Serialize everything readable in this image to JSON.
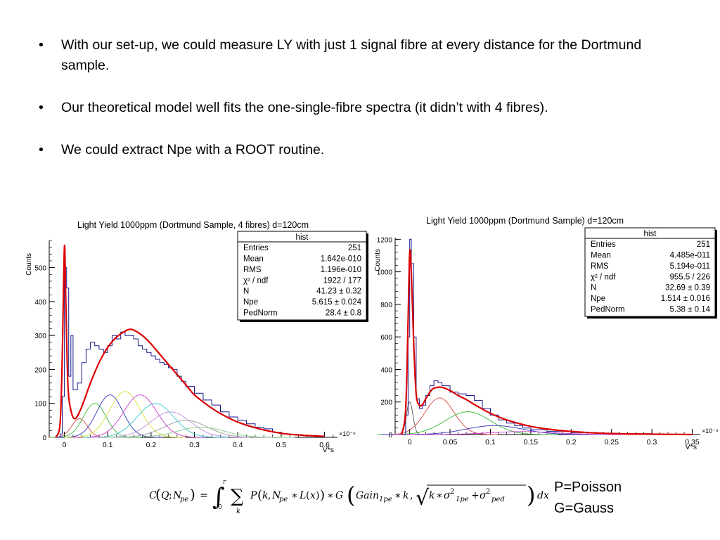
{
  "bullets": [
    "With our set-up, we  could measure LY with just 1 signal fibre at every distance for the Dortmund sample.",
    "Our theoretical model well fits the one-single-fibre spectra (it didn’t with 4 fibres).",
    "We could extract Npe with a ROOT routine."
  ],
  "bullet_symbol": "•",
  "formula_legend": {
    "poisson": "P=Poisson",
    "gauss": "G=Gauss"
  },
  "formula": {
    "lhs_c": "C",
    "lhs_q": "Q",
    "lhs_npe": "N",
    "sub_pe": "pe",
    "integral": "∫",
    "lower": "0",
    "upper": "r",
    "sum": "∑",
    "sum_index": "k",
    "p": "P",
    "k": "k",
    "l": "L",
    "x": "x",
    "g": "G",
    "gain": "Gain",
    "sub_1pe": "1pe",
    "sigma": "σ",
    "two": "2",
    "sub_ped": "ped",
    "dx": "dx",
    "eq": "=",
    "star": "∗",
    "plus": "+",
    "comma": ",",
    "semicolon": ";",
    "lparen": "(",
    "rparen": ")",
    "sqrt": "√"
  },
  "chart_data": [
    {
      "type": "line",
      "title": "Light Yield 1000ppm (Dortmund Sample, 4 fibres) d=120cm",
      "xlabel": "V*s",
      "ylabel": "Counts",
      "x_exponent": "×10⁻⁹",
      "xlim": [
        -0.035,
        0.63
      ],
      "ylim": [
        0,
        580
      ],
      "xticks": [
        0,
        0.1,
        0.2,
        0.3,
        0.4,
        0.5,
        0.6
      ],
      "xtick_labels": [
        "0",
        "0.1",
        "0.2",
        "0.3",
        "0.4",
        "0.5",
        "0.6"
      ],
      "yticks": [
        0,
        100,
        200,
        300,
        400,
        500
      ],
      "grid": false,
      "stats_box": {
        "title": "hist",
        "rows": [
          [
            "Entries",
            "251"
          ],
          [
            "Mean",
            "1.642e-010"
          ],
          [
            "RMS",
            "1.196e-010"
          ],
          [
            "χ² / ndf",
            "1922 / 177"
          ],
          [
            "N",
            "41.23 ± 0.32"
          ],
          [
            "Npe",
            "5.615 ± 0.024"
          ],
          [
            "PedNorm",
            "28.4 ± 0.8"
          ]
        ]
      },
      "histogram": {
        "color": "#1a1a8c",
        "x": [
          -0.02,
          -0.01,
          -0.005,
          0,
          0.005,
          0.01,
          0.015,
          0.02,
          0.03,
          0.04,
          0.05,
          0.06,
          0.07,
          0.08,
          0.09,
          0.1,
          0.11,
          0.12,
          0.13,
          0.14,
          0.15,
          0.16,
          0.17,
          0.18,
          0.19,
          0.2,
          0.21,
          0.22,
          0.23,
          0.24,
          0.25,
          0.26,
          0.27,
          0.28,
          0.3,
          0.32,
          0.34,
          0.36,
          0.38,
          0.4,
          0.42,
          0.44,
          0.46,
          0.48,
          0.5,
          0.52,
          0.55,
          0.58,
          0.6
        ],
        "y": [
          0,
          10,
          120,
          500,
          440,
          180,
          300,
          140,
          160,
          220,
          260,
          280,
          270,
          260,
          250,
          270,
          300,
          290,
          310,
          300,
          300,
          290,
          270,
          260,
          250,
          240,
          230,
          220,
          215,
          205,
          200,
          180,
          165,
          150,
          130,
          110,
          95,
          75,
          60,
          50,
          40,
          30,
          25,
          15,
          10,
          8,
          5,
          3,
          0
        ]
      },
      "series": [
        {
          "color": "#dd0000",
          "x": [
            -0.02,
            -0.01,
            -0.005,
            0,
            0.003,
            0.008,
            0.015,
            0.025,
            0.04,
            0.06,
            0.08,
            0.1,
            0.12,
            0.14,
            0.15,
            0.16,
            0.18,
            0.2,
            0.22,
            0.25,
            0.28,
            0.3,
            0.33,
            0.36,
            0.4,
            0.45,
            0.5,
            0.55,
            0.6
          ],
          "y": [
            0,
            40,
            230,
            560,
            420,
            160,
            80,
            55,
            90,
            160,
            220,
            265,
            295,
            313,
            318,
            316,
            300,
            275,
            245,
            200,
            155,
            125,
            95,
            70,
            45,
            25,
            12,
            6,
            3
          ]
        }
      ],
      "components": [
        {
          "color": "#dd4444",
          "mu": 0.035,
          "sigma": 0.018,
          "amp": 55
        },
        {
          "color": "#33bb33",
          "mu": 0.07,
          "sigma": 0.026,
          "amp": 100
        },
        {
          "color": "#3333bb",
          "mu": 0.105,
          "sigma": 0.03,
          "amp": 125
        },
        {
          "color": "#dddd33",
          "mu": 0.14,
          "sigma": 0.035,
          "amp": 135
        },
        {
          "color": "#cc33cc",
          "mu": 0.175,
          "sigma": 0.038,
          "amp": 125
        },
        {
          "color": "#33cccc",
          "mu": 0.21,
          "sigma": 0.042,
          "amp": 100
        },
        {
          "color": "#bb88dd",
          "mu": 0.245,
          "sigma": 0.046,
          "amp": 75
        },
        {
          "color": "#999999",
          "mu": 0.28,
          "sigma": 0.05,
          "amp": 50
        },
        {
          "color": "#88cc88",
          "mu": 0.315,
          "sigma": 0.054,
          "amp": 30
        }
      ]
    },
    {
      "type": "line",
      "title": "Light Yield 1000ppm (Dortmund Sample) d=120cm",
      "xlabel": "V*s",
      "ylabel": "Counts",
      "x_exponent": "×10⁻⁹",
      "xlim": [
        -0.018,
        0.36
      ],
      "ylim": [
        0,
        1210
      ],
      "xticks": [
        0,
        0.05,
        0.1,
        0.15,
        0.2,
        0.25,
        0.3,
        0.35
      ],
      "xtick_labels": [
        "0",
        "0.05",
        "0.1",
        "0.15",
        "0.2",
        "0.25",
        "0.3",
        "0.35"
      ],
      "yticks": [
        0,
        200,
        400,
        600,
        800,
        1000,
        1200
      ],
      "grid": false,
      "stats_box": {
        "title": "hist",
        "rows": [
          [
            "Entries",
            "251"
          ],
          [
            "Mean",
            "4.485e-011"
          ],
          [
            "RMS",
            "5.194e-011"
          ],
          [
            "χ² / ndf",
            "955.5 / 226"
          ],
          [
            "N",
            "32.69 ± 0.39"
          ],
          [
            "Npe",
            "1.514 ± 0.016"
          ],
          [
            "PedNorm",
            "5.38 ± 0.14"
          ]
        ]
      },
      "histogram": {
        "color": "#1a1a8c",
        "x": [
          -0.01,
          -0.005,
          -0.002,
          0,
          0.002,
          0.005,
          0.008,
          0.012,
          0.016,
          0.02,
          0.025,
          0.03,
          0.035,
          0.04,
          0.05,
          0.06,
          0.07,
          0.08,
          0.09,
          0.1,
          0.11,
          0.12,
          0.13,
          0.14,
          0.15,
          0.17,
          0.2,
          0.23,
          0.26,
          0.3,
          0.33,
          0.35
        ],
        "y": [
          0,
          120,
          600,
          1200,
          1050,
          600,
          220,
          160,
          180,
          240,
          300,
          330,
          320,
          300,
          260,
          250,
          240,
          210,
          160,
          120,
          90,
          70,
          55,
          40,
          30,
          20,
          12,
          8,
          5,
          2,
          1,
          0
        ]
      },
      "series": [
        {
          "color": "#dd0000",
          "x": [
            -0.01,
            -0.005,
            -0.002,
            0,
            0.002,
            0.005,
            0.008,
            0.012,
            0.016,
            0.02,
            0.025,
            0.03,
            0.04,
            0.05,
            0.06,
            0.07,
            0.08,
            0.1,
            0.12,
            0.15,
            0.18,
            0.22,
            0.26,
            0.3,
            0.35
          ],
          "y": [
            0,
            150,
            700,
            1120,
            1000,
            560,
            250,
            180,
            185,
            220,
            260,
            285,
            290,
            270,
            240,
            215,
            185,
            130,
            90,
            50,
            28,
            12,
            5,
            2,
            0
          ]
        }
      ],
      "components": [
        {
          "color": "#555555",
          "mu": 0.0,
          "sigma": 0.004,
          "amp": 200
        },
        {
          "color": "#dd4444",
          "mu": 0.037,
          "sigma": 0.018,
          "amp": 225
        },
        {
          "color": "#33bb33",
          "mu": 0.072,
          "sigma": 0.028,
          "amp": 140
        },
        {
          "color": "#3333bb",
          "mu": 0.105,
          "sigma": 0.035,
          "amp": 55
        },
        {
          "color": "#cc33cc",
          "mu": 0.14,
          "sigma": 0.04,
          "amp": 18
        }
      ]
    }
  ]
}
